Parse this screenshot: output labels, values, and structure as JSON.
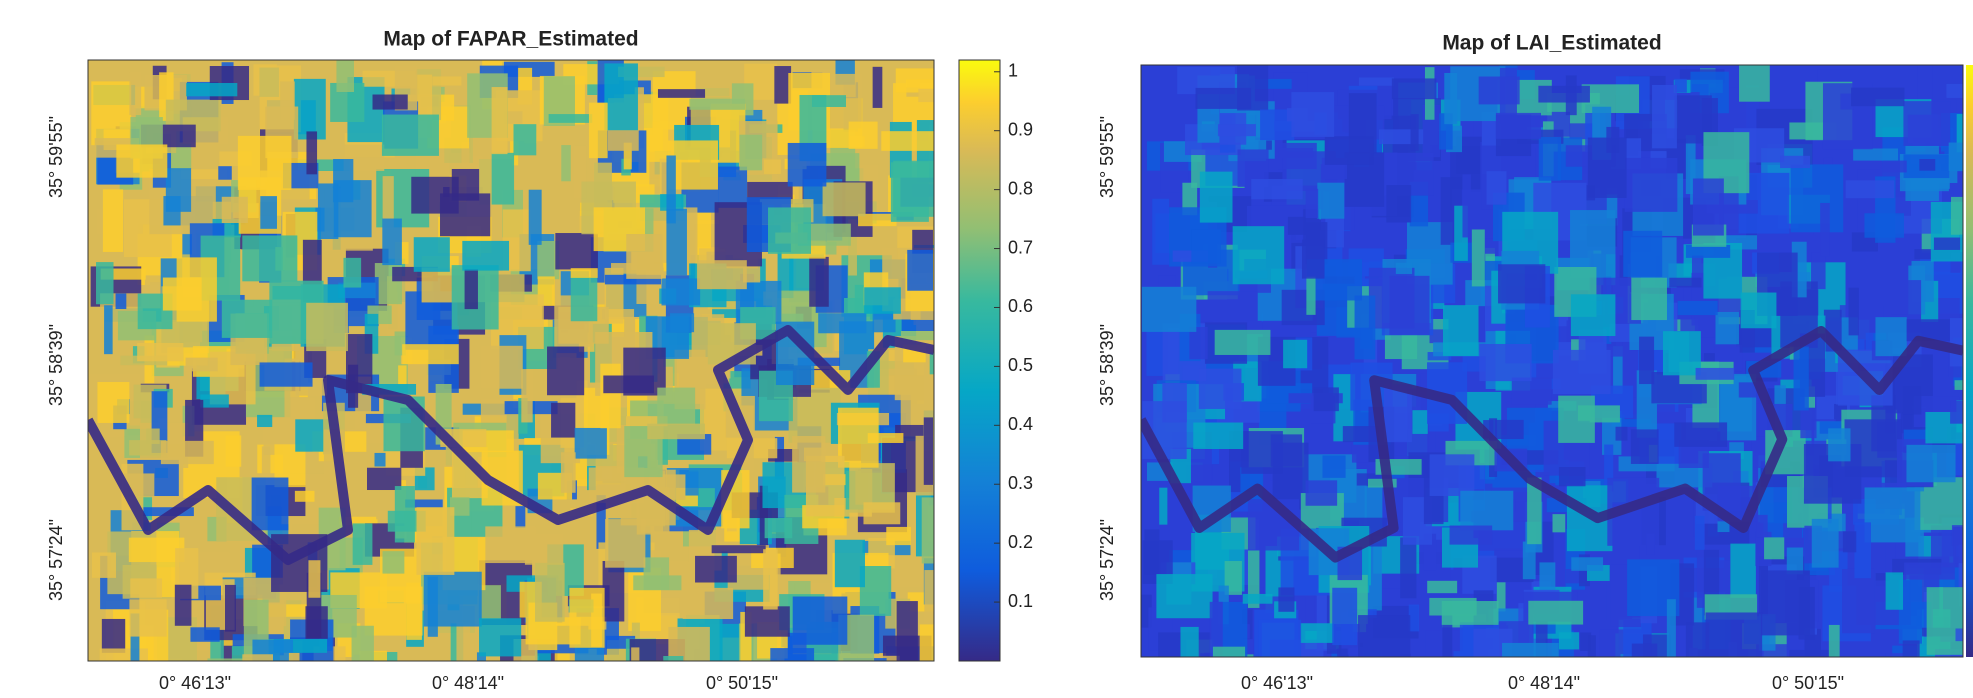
{
  "panels": [
    {
      "title": "Map of FAPAR_Estimated",
      "xticks": [
        "0° 46'13\"",
        "0° 48'14\"",
        "0° 50'15\""
      ],
      "yticks": [
        "35° 59'55\"",
        "35° 58'39\"",
        "35° 57'24\""
      ],
      "colorbar": {
        "lim": [
          0,
          1.02
        ],
        "ticks": [
          0.1,
          0.2,
          0.3,
          0.4,
          0.5,
          0.6,
          0.7,
          0.8,
          0.9,
          1
        ]
      }
    },
    {
      "title": "Map of LAI_Estimated",
      "xticks": [
        "0° 46'13\"",
        "0° 48'14\"",
        "0° 50'15\""
      ],
      "yticks": [
        "35° 59'55\"",
        "35° 58'39\"",
        "35° 57'24\""
      ]
    }
  ]
}
